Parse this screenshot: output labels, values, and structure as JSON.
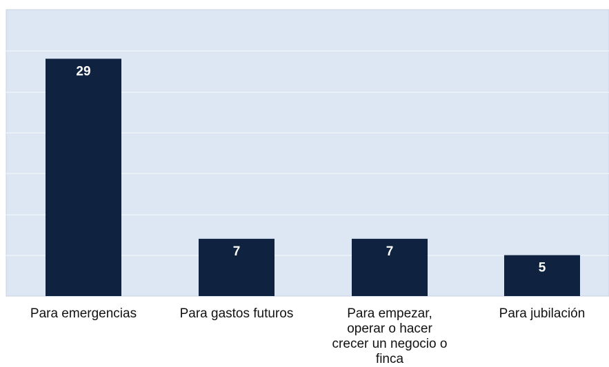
{
  "chart_data": {
    "type": "bar",
    "categories": [
      "Para emergencias",
      "Para gastos futuros",
      "Para empezar, operar o hacer crecer un negocio o finca",
      "Para jubilación"
    ],
    "category_lines": [
      [
        "Para emergencias"
      ],
      [
        "Para gastos futuros"
      ],
      [
        "Para empezar,",
        "operar o hacer",
        "crecer un negocio o",
        "finca"
      ],
      [
        "Para jubilación"
      ]
    ],
    "values": [
      29,
      7,
      7,
      5
    ],
    "data_labels": [
      "29",
      "7",
      "7",
      "5"
    ],
    "ylim": [
      0,
      35
    ],
    "grid": true,
    "legend": false,
    "title": "",
    "xlabel": "",
    "ylabel": ""
  },
  "colors": {
    "bar": "#0f2340",
    "plot_background": "#dde6f3",
    "gridline": "#eef3fa",
    "plot_border": "#c9d3e2",
    "data_label": "#ffffff",
    "category_text": "#111111"
  }
}
